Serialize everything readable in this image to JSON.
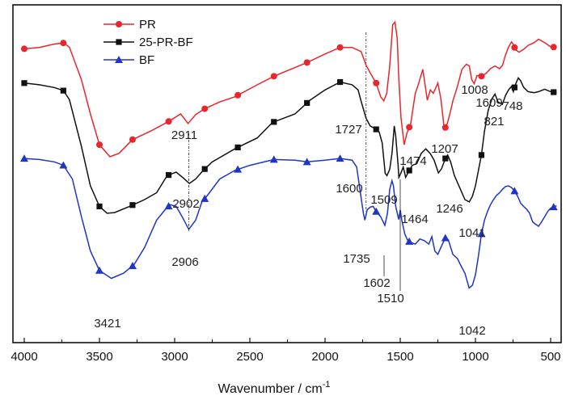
{
  "chart_data": {
    "type": "line",
    "title": "",
    "xlabel": "Wavenumber / cm",
    "xlabel_superscript": "-1",
    "ylabel": "",
    "xlim": [
      4000,
      450
    ],
    "x_reversed": true,
    "x_ticks": [
      4000,
      3500,
      3000,
      2500,
      2000,
      1500,
      1000,
      500
    ],
    "y_ticks_visible": false,
    "legend_position": "top-left",
    "series": [
      {
        "name": "PR",
        "color": "#e8262b",
        "marker": "circle",
        "points": [
          [
            4000,
            0.1
          ],
          [
            3900,
            0.096
          ],
          [
            3800,
            0.086
          ],
          [
            3740,
            0.083
          ],
          [
            3700,
            0.095
          ],
          [
            3620,
            0.19
          ],
          [
            3560,
            0.29
          ],
          [
            3500,
            0.38
          ],
          [
            3430,
            0.415
          ],
          [
            3370,
            0.405
          ],
          [
            3280,
            0.365
          ],
          [
            3150,
            0.338
          ],
          [
            3040,
            0.312
          ],
          [
            2960,
            0.29
          ],
          [
            2911,
            0.318
          ],
          [
            2860,
            0.292
          ],
          [
            2800,
            0.275
          ],
          [
            2700,
            0.255
          ],
          [
            2600,
            0.24
          ],
          [
            2450,
            0.205
          ],
          [
            2340,
            0.18
          ],
          [
            2120,
            0.14
          ],
          [
            2000,
            0.115
          ],
          [
            1900,
            0.096
          ],
          [
            1820,
            0.096
          ],
          [
            1760,
            0.108
          ],
          [
            1727,
            0.148
          ],
          [
            1700,
            0.17
          ],
          [
            1660,
            0.2
          ],
          [
            1630,
            0.24
          ],
          [
            1609,
            0.252
          ],
          [
            1590,
            0.23
          ],
          [
            1570,
            0.15
          ],
          [
            1550,
            0.03
          ],
          [
            1535,
            0.022
          ],
          [
            1520,
            0.07
          ],
          [
            1510,
            0.18
          ],
          [
            1495,
            0.3
          ],
          [
            1474,
            0.38
          ],
          [
            1455,
            0.345
          ],
          [
            1430,
            0.318
          ],
          [
            1400,
            0.23
          ],
          [
            1380,
            0.205
          ],
          [
            1350,
            0.16
          ],
          [
            1320,
            0.25
          ],
          [
            1300,
            0.22
          ],
          [
            1280,
            0.23
          ],
          [
            1250,
            0.2
          ],
          [
            1230,
            0.245
          ],
          [
            1207,
            0.335
          ],
          [
            1190,
            0.322
          ],
          [
            1170,
            0.29
          ],
          [
            1150,
            0.252
          ],
          [
            1120,
            0.21
          ],
          [
            1090,
            0.16
          ],
          [
            1060,
            0.145
          ],
          [
            1041,
            0.15
          ],
          [
            1025,
            0.19
          ],
          [
            1008,
            0.202
          ],
          [
            990,
            0.178
          ],
          [
            960,
            0.18
          ],
          [
            930,
            0.172
          ],
          [
            900,
            0.158
          ],
          [
            870,
            0.15
          ],
          [
            840,
            0.158
          ],
          [
            820,
            0.148
          ],
          [
            800,
            0.118
          ],
          [
            780,
            0.095
          ],
          [
            760,
            0.08
          ],
          [
            748,
            0.087
          ],
          [
            735,
            0.102
          ],
          [
            710,
            0.11
          ],
          [
            680,
            0.102
          ],
          [
            650,
            0.09
          ],
          [
            610,
            0.082
          ],
          [
            580,
            0.072
          ],
          [
            540,
            0.082
          ],
          [
            500,
            0.094
          ],
          [
            460,
            0.096
          ]
        ]
      },
      {
        "name": "25-PR-BF",
        "color": "#111111",
        "marker": "square",
        "points": [
          [
            4000,
            0.2
          ],
          [
            3900,
            0.205
          ],
          [
            3800,
            0.213
          ],
          [
            3740,
            0.222
          ],
          [
            3700,
            0.248
          ],
          [
            3620,
            0.385
          ],
          [
            3560,
            0.5
          ],
          [
            3500,
            0.56
          ],
          [
            3450,
            0.58
          ],
          [
            3400,
            0.578
          ],
          [
            3300,
            0.56
          ],
          [
            3200,
            0.54
          ],
          [
            3120,
            0.52
          ],
          [
            3050,
            0.47
          ],
          [
            2990,
            0.46
          ],
          [
            2940,
            0.478
          ],
          [
            2902,
            0.493
          ],
          [
            2860,
            0.48
          ],
          [
            2810,
            0.455
          ],
          [
            2750,
            0.43
          ],
          [
            2600,
            0.392
          ],
          [
            2450,
            0.36
          ],
          [
            2350,
            0.315
          ],
          [
            2200,
            0.29
          ],
          [
            2100,
            0.25
          ],
          [
            2000,
            0.22
          ],
          [
            1900,
            0.197
          ],
          [
            1820,
            0.205
          ],
          [
            1780,
            0.22
          ],
          [
            1760,
            0.253
          ],
          [
            1727,
            0.303
          ],
          [
            1700,
            0.325
          ],
          [
            1660,
            0.335
          ],
          [
            1640,
            0.343
          ],
          [
            1620,
            0.375
          ],
          [
            1600,
            0.464
          ],
          [
            1588,
            0.47
          ],
          [
            1570,
            0.452
          ],
          [
            1555,
            0.405
          ],
          [
            1540,
            0.325
          ],
          [
            1530,
            0.355
          ],
          [
            1515,
            0.435
          ],
          [
            1509,
            0.475
          ],
          [
            1495,
            0.462
          ],
          [
            1480,
            0.445
          ],
          [
            1464,
            0.475
          ],
          [
            1440,
            0.455
          ],
          [
            1420,
            0.44
          ],
          [
            1390,
            0.435
          ],
          [
            1360,
            0.405
          ],
          [
            1330,
            0.392
          ],
          [
            1300,
            0.406
          ],
          [
            1275,
            0.425
          ],
          [
            1246,
            0.462
          ],
          [
            1225,
            0.45
          ],
          [
            1200,
            0.42
          ],
          [
            1185,
            0.41
          ],
          [
            1165,
            0.43
          ],
          [
            1140,
            0.47
          ],
          [
            1100,
            0.51
          ],
          [
            1070,
            0.54
          ],
          [
            1041,
            0.547
          ],
          [
            1020,
            0.53
          ],
          [
            1000,
            0.5
          ],
          [
            980,
            0.455
          ],
          [
            960,
            0.41
          ],
          [
            940,
            0.34
          ],
          [
            915,
            0.28
          ],
          [
            890,
            0.245
          ],
          [
            870,
            0.232
          ],
          [
            850,
            0.255
          ],
          [
            821,
            0.262
          ],
          [
            800,
            0.236
          ],
          [
            780,
            0.22
          ],
          [
            760,
            0.21
          ],
          [
            748,
            0.225
          ],
          [
            735,
            0.205
          ],
          [
            715,
            0.185
          ],
          [
            700,
            0.193
          ],
          [
            680,
            0.212
          ],
          [
            650,
            0.225
          ],
          [
            610,
            0.228
          ],
          [
            580,
            0.225
          ],
          [
            540,
            0.218
          ],
          [
            500,
            0.225
          ],
          [
            460,
            0.228
          ]
        ]
      },
      {
        "name": "BF",
        "color": "#1f35c7",
        "marker": "triangle",
        "points": [
          [
            4000,
            0.42
          ],
          [
            3900,
            0.423
          ],
          [
            3800,
            0.43
          ],
          [
            3740,
            0.44
          ],
          [
            3680,
            0.48
          ],
          [
            3620,
            0.59
          ],
          [
            3560,
            0.69
          ],
          [
            3500,
            0.747
          ],
          [
            3421,
            0.77
          ],
          [
            3340,
            0.755
          ],
          [
            3270,
            0.73
          ],
          [
            3200,
            0.68
          ],
          [
            3120,
            0.6
          ],
          [
            3060,
            0.568
          ],
          [
            3030,
            0.555
          ],
          [
            2990,
            0.56
          ],
          [
            2950,
            0.59
          ],
          [
            2906,
            0.627
          ],
          [
            2860,
            0.6
          ],
          [
            2820,
            0.548
          ],
          [
            2790,
            0.532
          ],
          [
            2700,
            0.48
          ],
          [
            2600,
            0.455
          ],
          [
            2500,
            0.44
          ],
          [
            2340,
            0.423
          ],
          [
            2200,
            0.425
          ],
          [
            2120,
            0.43
          ],
          [
            2000,
            0.425
          ],
          [
            1900,
            0.42
          ],
          [
            1820,
            0.425
          ],
          [
            1790,
            0.445
          ],
          [
            1765,
            0.52
          ],
          [
            1745,
            0.58
          ],
          [
            1735,
            0.6
          ],
          [
            1720,
            0.57
          ],
          [
            1700,
            0.562
          ],
          [
            1680,
            0.56
          ],
          [
            1660,
            0.575
          ],
          [
            1630,
            0.59
          ],
          [
            1602,
            0.615
          ],
          [
            1585,
            0.58
          ],
          [
            1570,
            0.51
          ],
          [
            1555,
            0.485
          ],
          [
            1545,
            0.5
          ],
          [
            1530,
            0.56
          ],
          [
            1510,
            0.598
          ],
          [
            1500,
            0.57
          ],
          [
            1490,
            0.6
          ],
          [
            1470,
            0.64
          ],
          [
            1450,
            0.66
          ],
          [
            1430,
            0.665
          ],
          [
            1400,
            0.67
          ],
          [
            1370,
            0.655
          ],
          [
            1340,
            0.66
          ],
          [
            1310,
            0.67
          ],
          [
            1290,
            0.648
          ],
          [
            1270,
            0.69
          ],
          [
            1250,
            0.7
          ],
          [
            1230,
            0.68
          ],
          [
            1200,
            0.652
          ],
          [
            1180,
            0.658
          ],
          [
            1150,
            0.7
          ],
          [
            1120,
            0.712
          ],
          [
            1100,
            0.73
          ],
          [
            1070,
            0.755
          ],
          [
            1042,
            0.798
          ],
          [
            1020,
            0.79
          ],
          [
            1000,
            0.76
          ],
          [
            980,
            0.705
          ],
          [
            960,
            0.64
          ],
          [
            940,
            0.6
          ],
          [
            920,
            0.575
          ],
          [
            900,
            0.555
          ],
          [
            880,
            0.54
          ],
          [
            860,
            0.528
          ],
          [
            840,
            0.52
          ],
          [
            820,
            0.51
          ],
          [
            800,
            0.502
          ],
          [
            780,
            0.5
          ],
          [
            760,
            0.505
          ],
          [
            740,
            0.515
          ],
          [
            720,
            0.53
          ],
          [
            700,
            0.55
          ],
          [
            680,
            0.56
          ],
          [
            660,
            0.568
          ],
          [
            640,
            0.58
          ],
          [
            620,
            0.605
          ],
          [
            600,
            0.612
          ],
          [
            580,
            0.618
          ],
          [
            560,
            0.605
          ],
          [
            540,
            0.59
          ],
          [
            520,
            0.575
          ],
          [
            500,
            0.565
          ],
          [
            470,
            0.56
          ],
          [
            460,
            0.558
          ]
        ]
      }
    ],
    "markers": {
      "PR": [
        4000,
        3740,
        3500,
        3280,
        3040,
        2800,
        2580,
        2340,
        2120,
        1900,
        1660,
        1440,
        1200,
        960,
        740,
        480
      ],
      "25-PR-BF": [
        4000,
        3740,
        3500,
        3280,
        3040,
        2800,
        2580,
        2340,
        2120,
        1900,
        1660,
        1440,
        1200,
        960,
        740,
        480
      ],
      "BF": [
        4000,
        3740,
        3500,
        3280,
        3040,
        2800,
        2580,
        2340,
        2120,
        1900,
        1660,
        1440,
        1200,
        960,
        740,
        480
      ]
    },
    "annotations": [
      {
        "text": "1609",
        "x": 1609,
        "series": "PR"
      },
      {
        "text": "1008",
        "x": 1008,
        "series": "PR"
      },
      {
        "text": "748",
        "x": 748,
        "series": "PR"
      },
      {
        "text": "821",
        "x": 821,
        "series": "25-PR-BF"
      },
      {
        "text": "2911",
        "x": 2911,
        "series": "PR"
      },
      {
        "text": "1727",
        "x": 1727,
        "series": "PR"
      },
      {
        "text": "1474",
        "x": 1474,
        "series": "PR"
      },
      {
        "text": "1207",
        "x": 1207,
        "series": "PR"
      },
      {
        "text": "2902",
        "x": 2902,
        "series": "25-PR-BF"
      },
      {
        "text": "1600",
        "x": 1600,
        "series": "25-PR-BF"
      },
      {
        "text": "1509",
        "x": 1509,
        "series": "25-PR-BF"
      },
      {
        "text": "1464",
        "x": 1464,
        "series": "25-PR-BF"
      },
      {
        "text": "1246",
        "x": 1246,
        "series": "25-PR-BF"
      },
      {
        "text": "1041",
        "x": 1041,
        "series": "25-PR-BF"
      },
      {
        "text": "2906",
        "x": 2906,
        "series": "BF"
      },
      {
        "text": "1735",
        "x": 1735,
        "series": "BF"
      },
      {
        "text": "1602",
        "x": 1602,
        "series": "BF"
      },
      {
        "text": "1510",
        "x": 1510,
        "series": "BF"
      },
      {
        "text": "3421",
        "x": 3421,
        "series": "BF"
      },
      {
        "text": "1042",
        "x": 1042,
        "series": "BF"
      }
    ],
    "guide_lines": [
      2906,
      1727
    ]
  }
}
